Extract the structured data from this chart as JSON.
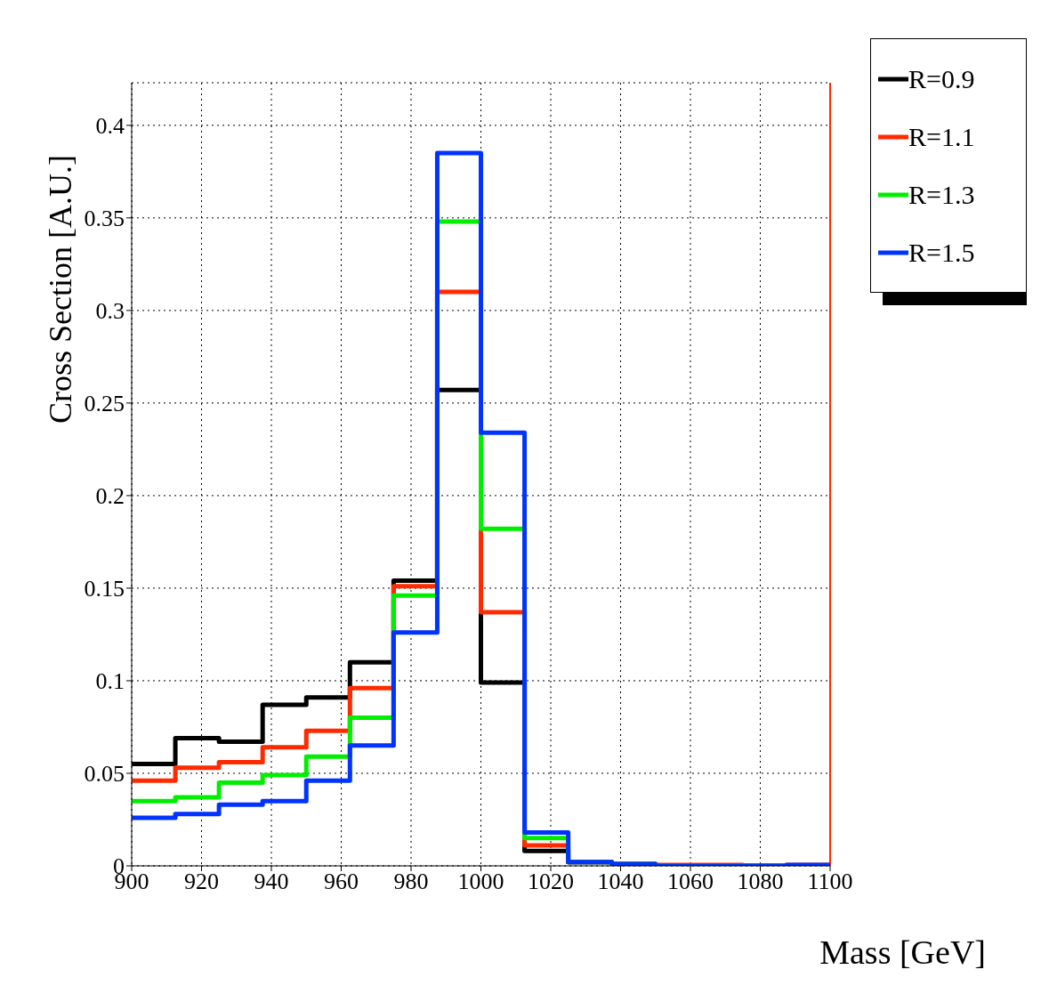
{
  "chart_data": {
    "type": "histogram",
    "xlabel": "Mass [GeV]",
    "ylabel": "Cross Section [A.U.]",
    "bins": [
      900,
      912.5,
      925,
      937.5,
      950,
      962.5,
      975,
      987.5,
      1000,
      1012.5,
      1025,
      1037.5,
      1050,
      1062.5,
      1075,
      1087.5,
      1100
    ],
    "series": [
      {
        "name": "R=0.9",
        "color": "#000000",
        "values": [
          0.055,
          0.069,
          0.067,
          0.087,
          0.091,
          0.11,
          0.154,
          0.257,
          0.099,
          0.008,
          0.002,
          0.001,
          0,
          0,
          0,
          0
        ]
      },
      {
        "name": "R=1.1",
        "color": "#ff2a00",
        "values": [
          0.046,
          0.053,
          0.056,
          0.064,
          0.073,
          0.096,
          0.151,
          0.31,
          0.137,
          0.011,
          0.002,
          0.001,
          0.0005,
          0.0005,
          0,
          0.0005
        ]
      },
      {
        "name": "R=1.3",
        "color": "#00ee00",
        "values": [
          0.035,
          0.037,
          0.045,
          0.049,
          0.059,
          0.08,
          0.146,
          0.348,
          0.182,
          0.015,
          0.002,
          0.001,
          0,
          0,
          0,
          0
        ]
      },
      {
        "name": "R=1.5",
        "color": "#0033ff",
        "values": [
          0.026,
          0.028,
          0.033,
          0.035,
          0.046,
          0.065,
          0.126,
          0.385,
          0.234,
          0.018,
          0.002,
          0.001,
          0,
          0,
          0,
          0.0005
        ]
      }
    ],
    "xlim": [
      900,
      1100
    ],
    "xticks": [
      900,
      920,
      940,
      960,
      980,
      1000,
      1020,
      1040,
      1060,
      1080,
      1100
    ],
    "ylim": [
      0,
      0.423
    ],
    "yticks": [
      0,
      0.05,
      0.1,
      0.15,
      0.2,
      0.25,
      0.3,
      0.35,
      0.4
    ],
    "ref_lines": [
      {
        "axis": "x",
        "value": 1100,
        "color": "#ff2a00"
      }
    ],
    "grid": true,
    "legend": "top right"
  }
}
